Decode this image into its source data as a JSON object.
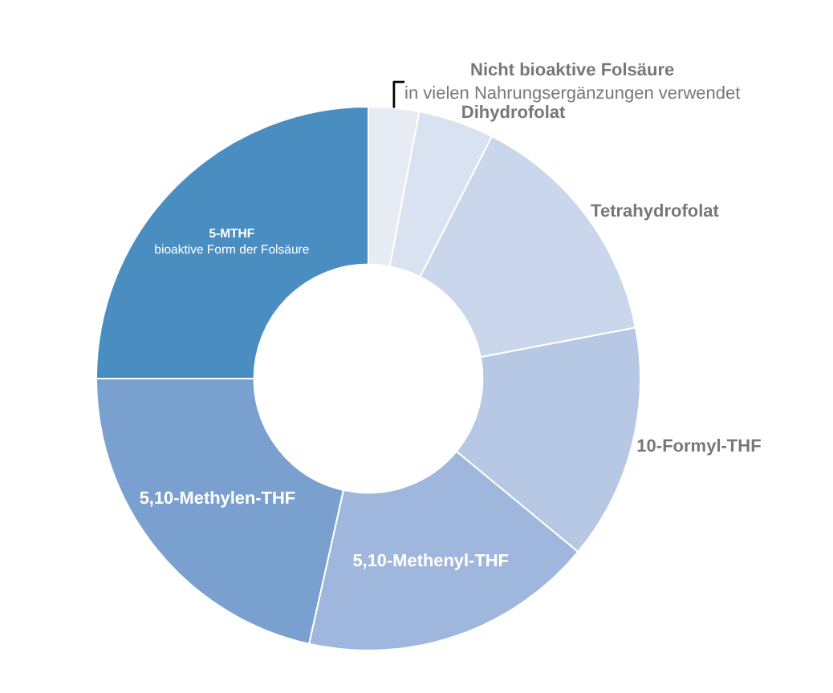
{
  "chart_data": {
    "type": "donut",
    "categories": [
      "Nicht bioaktive Folsäure\nin vielen Nahrungsergänzungen verwendet",
      "Dihydrofolat",
      "Tetrahydrofolat",
      "10-Formyl-THF",
      "5,10-Methenyl-THF",
      "5,10-Methylen-THF",
      "5-MTHF\nbioaktive Form der Folsäure"
    ],
    "values": [
      3,
      4.5,
      14.5,
      14,
      17.5,
      21.5,
      25
    ],
    "colors": [
      "#e6ebf4",
      "#d9e2f1",
      "#c9d6eb",
      "#b7c8e4",
      "#9fb7dc",
      "#7aa0d0",
      "#4a8dc0"
    ],
    "legend": false
  }
}
